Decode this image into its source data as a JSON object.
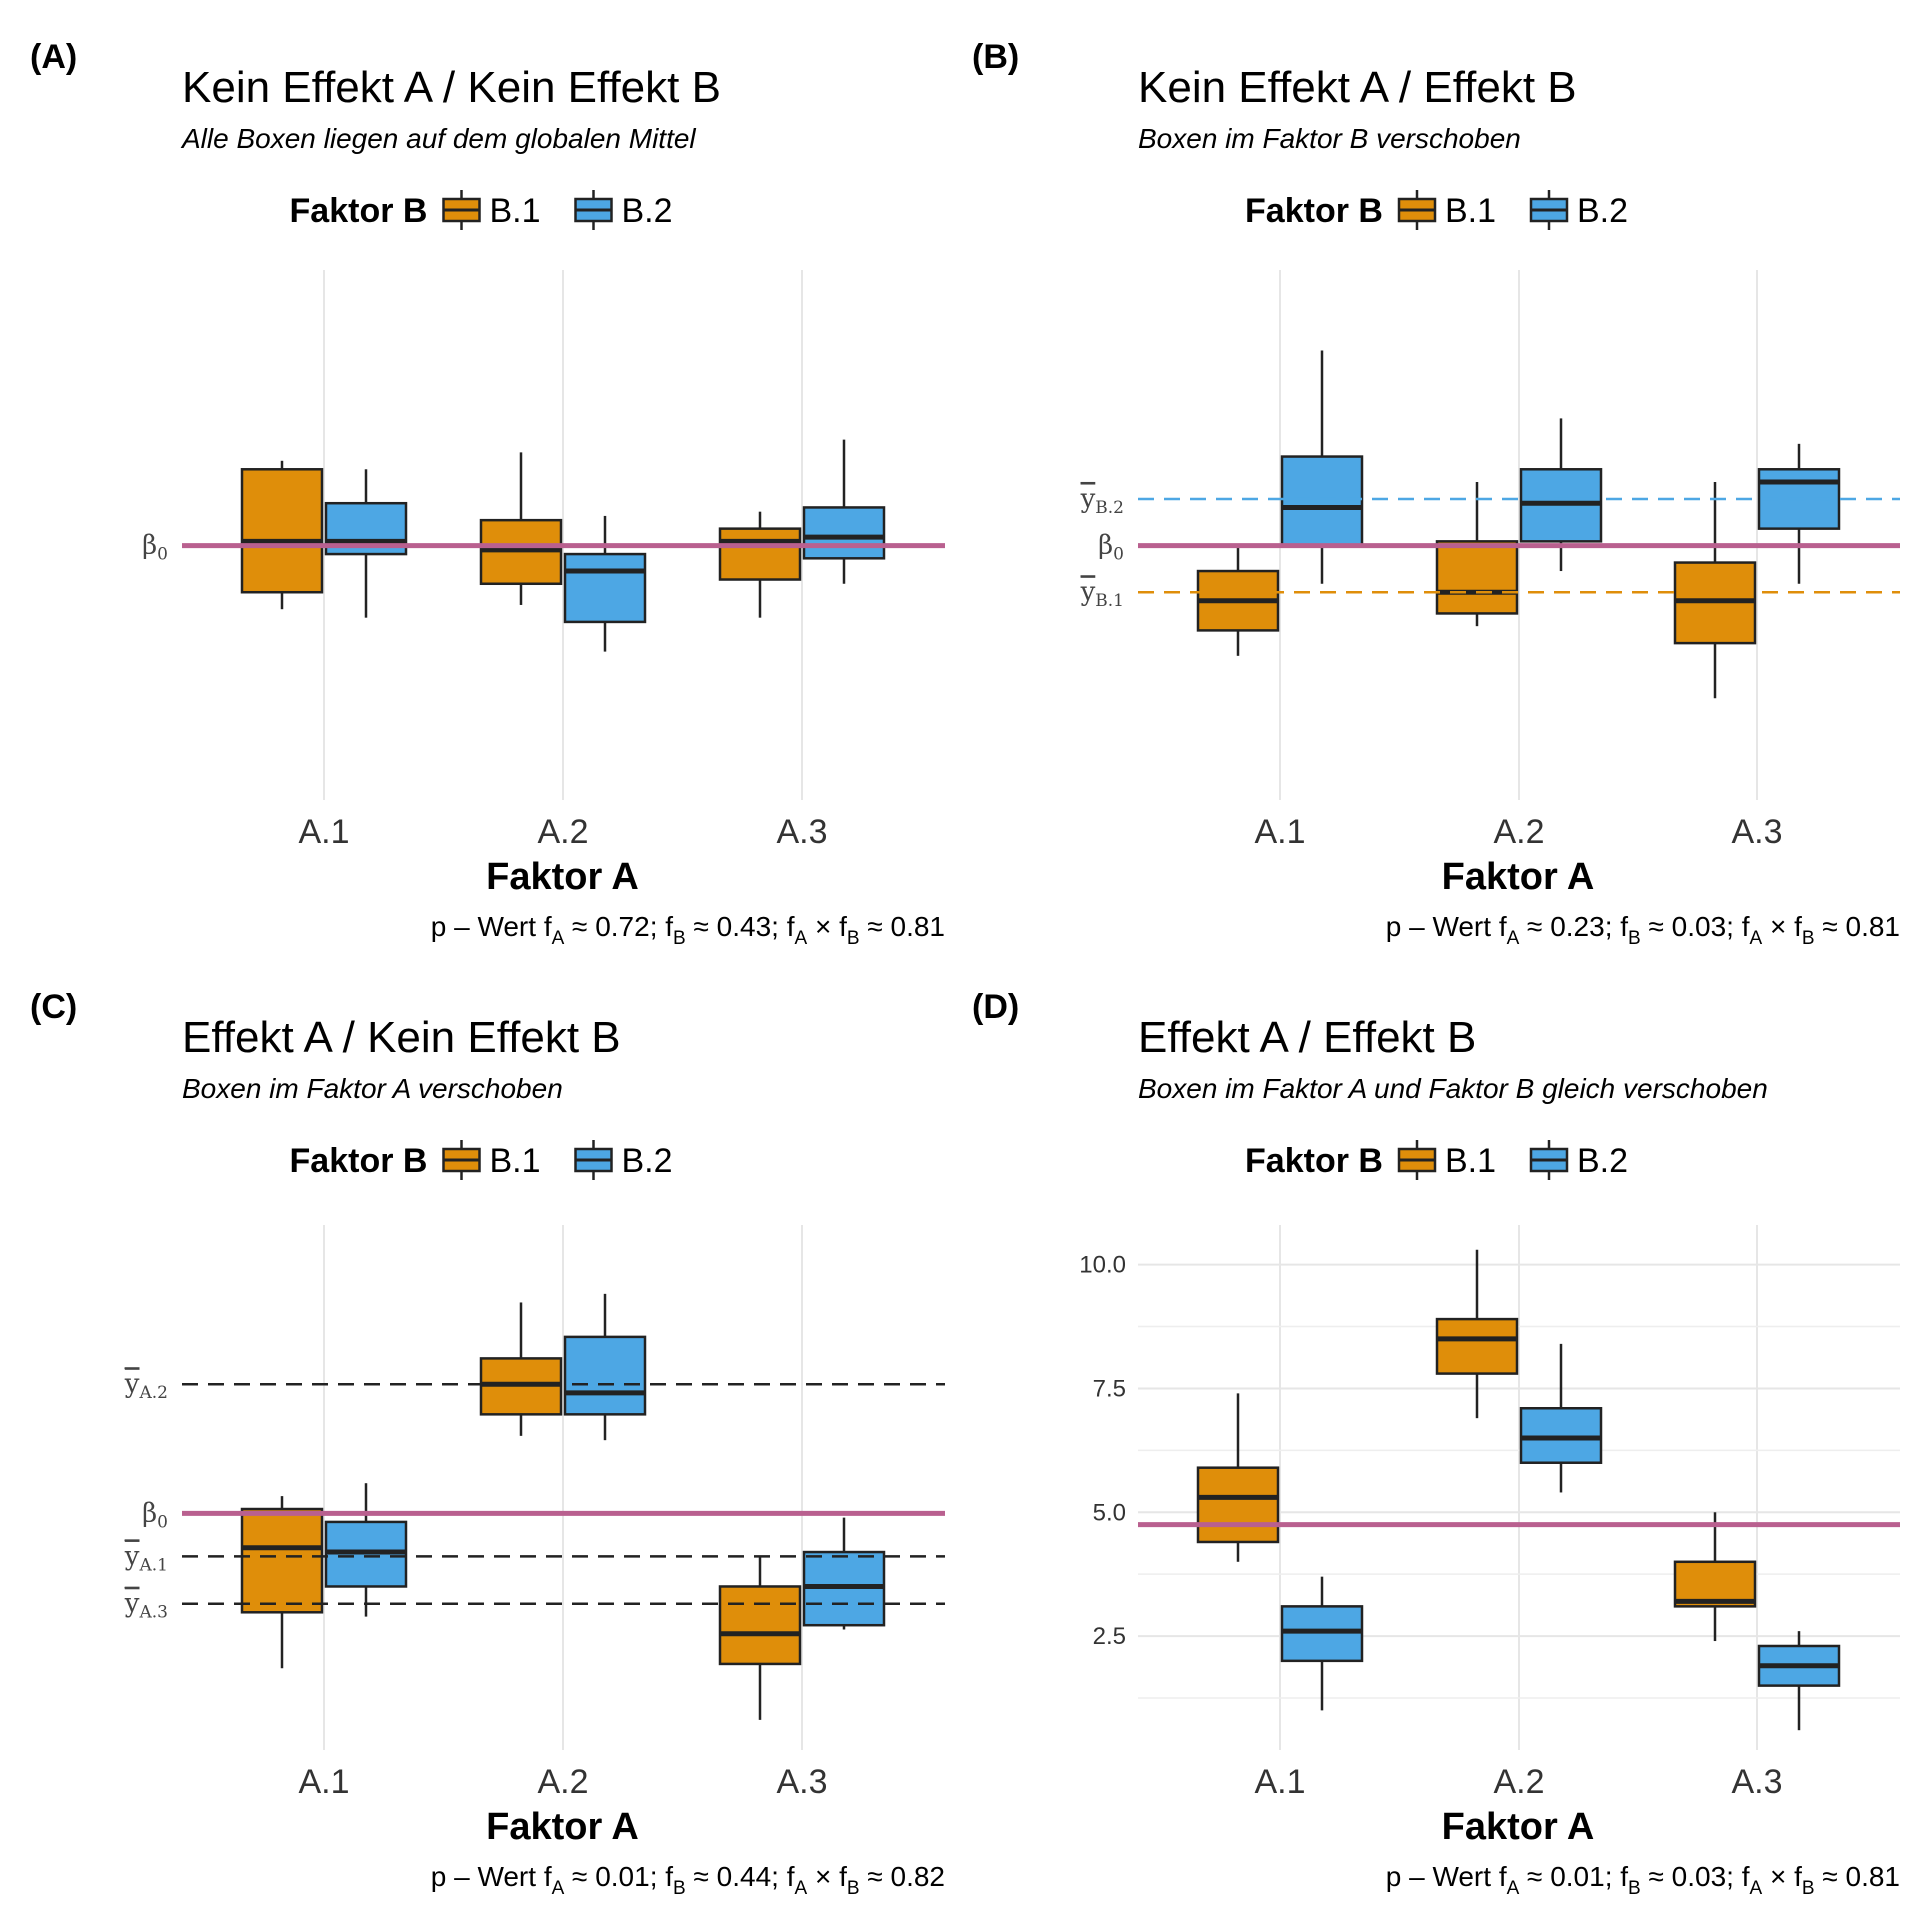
{
  "colors": {
    "B.1": "#DF8E0A",
    "B.2": "#4DA7E4",
    "beta0": "#B9608F",
    "box_stroke": "#222222",
    "grid": "#e6e6e6"
  },
  "chart_data": [
    {
      "type": "box",
      "panel": "(A)",
      "title": "Kein Effekt A / Kein Effekt B",
      "subtitle": "Alle Boxen liegen auf dem globalen Mittel",
      "legend": {
        "title": "Faktor B",
        "entries": [
          "B.1",
          "B.2"
        ],
        "position": "top"
      },
      "xlabel": "Faktor A",
      "categories": [
        "A.1",
        "A.2",
        "A.3"
      ],
      "ylim": [
        -6,
        6.5
      ],
      "y_ticks": [],
      "grid": {
        "vertical": true,
        "horizontal": false
      },
      "series": [
        {
          "name": "B.1",
          "boxes": [
            {
              "min": -1.5,
              "q1": -1.1,
              "median": 0.1,
              "q3": 1.8,
              "max": 2.0
            },
            {
              "min": -1.4,
              "q1": -0.9,
              "median": -0.1,
              "q3": 0.6,
              "max": 2.2
            },
            {
              "min": -1.7,
              "q1": -0.8,
              "median": 0.1,
              "q3": 0.4,
              "max": 0.8
            }
          ]
        },
        {
          "name": "B.2",
          "boxes": [
            {
              "min": -1.7,
              "q1": -0.2,
              "median": 0.1,
              "q3": 1.0,
              "max": 1.8
            },
            {
              "min": -2.5,
              "q1": -1.8,
              "median": -0.6,
              "q3": -0.2,
              "max": 0.7
            },
            {
              "min": -0.9,
              "q1": -0.3,
              "median": 0.2,
              "q3": 0.9,
              "max": 2.5
            }
          ]
        }
      ],
      "reference_lines": [
        {
          "y": 0,
          "label": "β",
          "subscript": "0",
          "color": "beta0",
          "dashed": false,
          "width": 5
        }
      ],
      "caption": {
        "prefix": "p – Wert f",
        "parts": [
          {
            "sub": "A",
            "text": " ≈ 0.72; f"
          },
          {
            "sub": "B",
            "text": " ≈ 0.43; f"
          },
          {
            "sub": "A",
            "text": " × f"
          },
          {
            "sub": "B",
            "text": " ≈ 0.81"
          }
        ]
      }
    },
    {
      "type": "box",
      "panel": "(B)",
      "title": "Kein Effekt A / Effekt B",
      "subtitle": "Boxen im Faktor B verschoben",
      "legend": {
        "title": "Faktor B",
        "entries": [
          "B.1",
          "B.2"
        ],
        "position": "top"
      },
      "xlabel": "Faktor A",
      "categories": [
        "A.1",
        "A.2",
        "A.3"
      ],
      "ylim": [
        -6,
        6.5
      ],
      "y_ticks": [],
      "grid": {
        "vertical": true,
        "horizontal": false
      },
      "series": [
        {
          "name": "B.1",
          "boxes": [
            {
              "min": -2.6,
              "q1": -2.0,
              "median": -1.3,
              "q3": -0.6,
              "max": 0.0
            },
            {
              "min": -1.9,
              "q1": -1.6,
              "median": -1.1,
              "q3": 0.1,
              "max": 1.5
            },
            {
              "min": -3.6,
              "q1": -2.3,
              "median": -1.3,
              "q3": -0.4,
              "max": 1.5
            }
          ]
        },
        {
          "name": "B.2",
          "boxes": [
            {
              "min": -0.9,
              "q1": 0.0,
              "median": 0.9,
              "q3": 2.1,
              "max": 4.6
            },
            {
              "min": -0.6,
              "q1": 0.1,
              "median": 1.0,
              "q3": 1.8,
              "max": 3.0
            },
            {
              "min": -0.9,
              "q1": 0.4,
              "median": 1.5,
              "q3": 1.8,
              "max": 2.4
            }
          ]
        }
      ],
      "reference_lines": [
        {
          "y": 1.1,
          "label": "y",
          "subscript": "B.2",
          "bar": true,
          "color": "B.2",
          "dashed": true,
          "width": 2.5
        },
        {
          "y": 0,
          "label": "β",
          "subscript": "0",
          "color": "beta0",
          "dashed": false,
          "width": 5
        },
        {
          "y": -1.1,
          "label": "y",
          "subscript": "B.1",
          "bar": true,
          "color": "B.1",
          "dashed": true,
          "width": 2.5
        }
      ],
      "caption": {
        "prefix": "p – Wert f",
        "parts": [
          {
            "sub": "A",
            "text": " ≈ 0.23; f"
          },
          {
            "sub": "B",
            "text": " ≈ 0.03; f"
          },
          {
            "sub": "A",
            "text": " × f"
          },
          {
            "sub": "B",
            "text": " ≈ 0.81"
          }
        ]
      }
    },
    {
      "type": "box",
      "panel": "(C)",
      "title": "Effekt A / Kein Effekt B",
      "subtitle": "Boxen im Faktor A verschoben",
      "legend": {
        "title": "Faktor B",
        "entries": [
          "B.1",
          "B.2"
        ],
        "position": "top"
      },
      "xlabel": "Faktor A",
      "categories": [
        "A.1",
        "A.2",
        "A.3"
      ],
      "ylim": [
        -5.5,
        6.7
      ],
      "y_ticks": [],
      "grid": {
        "vertical": true,
        "horizontal": false
      },
      "series": [
        {
          "name": "B.1",
          "boxes": [
            {
              "min": -3.6,
              "q1": -2.3,
              "median": -0.8,
              "q3": 0.1,
              "max": 0.4
            },
            {
              "min": 1.8,
              "q1": 2.3,
              "median": 3.0,
              "q3": 3.6,
              "max": 4.9
            },
            {
              "min": -4.8,
              "q1": -3.5,
              "median": -2.8,
              "q3": -1.7,
              "max": -1.0
            }
          ]
        },
        {
          "name": "B.2",
          "boxes": [
            {
              "min": -2.4,
              "q1": -1.7,
              "median": -0.9,
              "q3": -0.2,
              "max": 0.7
            },
            {
              "min": 1.7,
              "q1": 2.3,
              "median": 2.8,
              "q3": 4.1,
              "max": 5.1
            },
            {
              "min": -2.7,
              "q1": -2.6,
              "median": -1.7,
              "q3": -0.9,
              "max": -0.1
            }
          ]
        }
      ],
      "reference_lines": [
        {
          "y": 3.0,
          "label": "y",
          "subscript": "A.2",
          "bar": true,
          "color": "#222222",
          "dashed": true,
          "width": 2.5
        },
        {
          "y": 0,
          "label": "β",
          "subscript": "0",
          "color": "beta0",
          "dashed": false,
          "width": 5
        },
        {
          "y": -1.0,
          "label": "y",
          "subscript": "A.1",
          "bar": true,
          "color": "#222222",
          "dashed": true,
          "width": 2.5
        },
        {
          "y": -2.1,
          "label": "y",
          "subscript": "A.3",
          "bar": true,
          "color": "#222222",
          "dashed": true,
          "width": 2.5
        }
      ],
      "caption": {
        "prefix": "p – Wert f",
        "parts": [
          {
            "sub": "A",
            "text": " ≈ 0.01; f"
          },
          {
            "sub": "B",
            "text": " ≈ 0.44; f"
          },
          {
            "sub": "A",
            "text": " × f"
          },
          {
            "sub": "B",
            "text": " ≈ 0.82"
          }
        ]
      }
    },
    {
      "type": "box",
      "panel": "(D)",
      "title": "Effekt A / Effekt B",
      "subtitle": "Boxen im Faktor A und Faktor B gleich verschoben",
      "legend": {
        "title": "Faktor B",
        "entries": [
          "B.1",
          "B.2"
        ],
        "position": "top"
      },
      "xlabel": "Faktor A",
      "categories": [
        "A.1",
        "A.2",
        "A.3"
      ],
      "ylim": [
        0.2,
        10.8
      ],
      "y_ticks": [
        "2.5",
        "5.0",
        "7.5",
        "10.0"
      ],
      "grid": {
        "vertical": true,
        "horizontal": true
      },
      "series": [
        {
          "name": "B.1",
          "boxes": [
            {
              "min": 4.0,
              "q1": 4.4,
              "median": 5.3,
              "q3": 5.9,
              "max": 7.4
            },
            {
              "min": 6.9,
              "q1": 7.8,
              "median": 8.5,
              "q3": 8.9,
              "max": 10.3
            },
            {
              "min": 2.4,
              "q1": 3.1,
              "median": 3.2,
              "q3": 4.0,
              "max": 5.0
            }
          ]
        },
        {
          "name": "B.2",
          "boxes": [
            {
              "min": 1.0,
              "q1": 2.0,
              "median": 2.6,
              "q3": 3.1,
              "max": 3.7
            },
            {
              "min": 5.4,
              "q1": 6.0,
              "median": 6.5,
              "q3": 7.1,
              "max": 8.4
            },
            {
              "min": 0.6,
              "q1": 1.5,
              "median": 1.9,
              "q3": 2.3,
              "max": 2.6
            }
          ]
        }
      ],
      "reference_lines": [
        {
          "y": 4.75,
          "label": "",
          "subscript": "",
          "color": "beta0",
          "dashed": false,
          "width": 5
        }
      ],
      "caption": {
        "prefix": "p – Wert f",
        "parts": [
          {
            "sub": "A",
            "text": " ≈ 0.01; f"
          },
          {
            "sub": "B",
            "text": " ≈ 0.03; f"
          },
          {
            "sub": "A",
            "text": " × f"
          },
          {
            "sub": "B",
            "text": " ≈ 0.81"
          }
        ]
      }
    }
  ]
}
